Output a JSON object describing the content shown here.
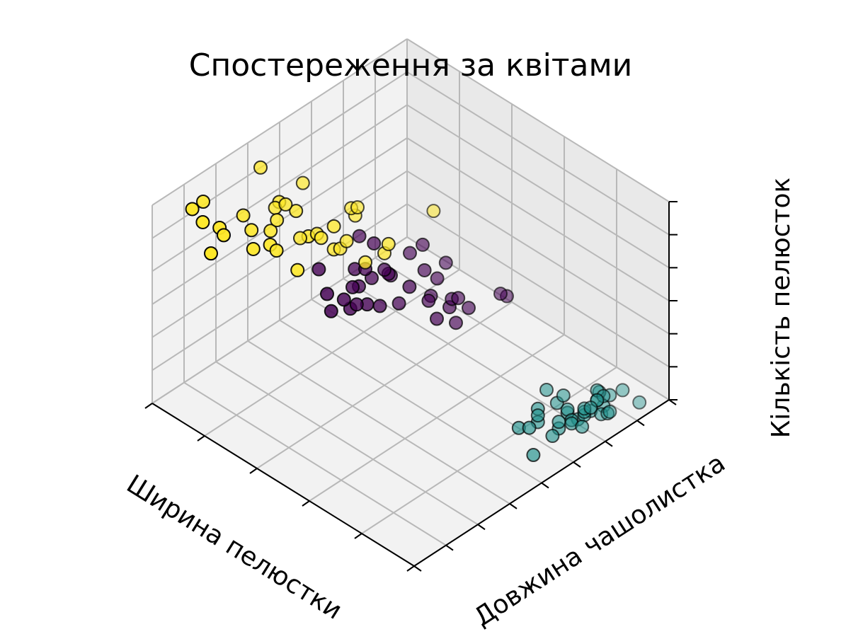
{
  "chart_data": {
    "type": "scatter3d",
    "title": "Спостереження за квітами",
    "xlabel": "Ширина пелюстки",
    "ylabel": "Довжина чашолистка",
    "zlabel": "Кількість пелюсток",
    "xlim": [
      0,
      2.5
    ],
    "ylim": [
      4,
      8
    ],
    "zlim": [
      1,
      7
    ],
    "xticks": [
      0,
      0.5,
      1,
      1.5,
      2,
      2.5
    ],
    "yticks": [
      4,
      4.5,
      5,
      5.5,
      6,
      6.5,
      7,
      7.5,
      8
    ],
    "zticks": [
      1,
      2,
      3,
      4,
      5,
      6,
      7
    ],
    "grid": true,
    "series": [
      {
        "color": "#21918c",
        "x": [
          0.2,
          0.2,
          0.2,
          0.2,
          0.2,
          0.4,
          0.3,
          0.2,
          0.2,
          0.1,
          0.2,
          0.2,
          0.1,
          0.1,
          0.2,
          0.4,
          0.4,
          0.3,
          0.3,
          0.3,
          0.2,
          0.4,
          0.2,
          0.5,
          0.2,
          0.2,
          0.4,
          0.2,
          0.2,
          0.2,
          0.2,
          0.4,
          0.1,
          0.2,
          0.2
        ],
        "y": [
          5.1,
          4.9,
          4.7,
          4.6,
          5.0,
          5.4,
          4.6,
          5.0,
          4.4,
          4.9,
          5.4,
          4.8,
          4.8,
          4.3,
          5.8,
          5.7,
          5.4,
          5.1,
          5.7,
          5.1,
          5.4,
          5.1,
          4.6,
          5.1,
          4.8,
          5.0,
          5.0,
          5.2,
          5.2,
          4.7,
          4.8,
          5.4,
          5.2,
          5.5,
          4.9
        ],
        "z": [
          1.4,
          1.4,
          1.3,
          1.5,
          1.4,
          1.7,
          1.4,
          1.5,
          1.4,
          1.5,
          1.5,
          1.6,
          1.4,
          1.1,
          1.2,
          1.5,
          1.3,
          1.4,
          1.7,
          1.5,
          1.7,
          1.5,
          1.0,
          1.7,
          1.9,
          1.6,
          1.6,
          1.5,
          1.4,
          1.6,
          1.6,
          1.5,
          1.5,
          1.4,
          1.5
        ]
      },
      {
        "color": "#440154",
        "x": [
          1.4,
          1.5,
          1.5,
          1.3,
          1.5,
          1.3,
          1.6,
          1.0,
          1.3,
          1.4,
          1.0,
          1.5,
          1.0,
          1.4,
          1.3,
          1.4,
          1.5,
          1.0,
          1.5,
          1.1,
          1.8,
          1.3,
          1.5,
          1.2,
          1.3,
          1.4,
          1.4,
          1.7,
          1.5,
          1.0,
          1.1,
          1.0,
          1.2,
          1.6,
          1.5
        ],
        "y": [
          7.0,
          6.4,
          6.9,
          5.5,
          6.5,
          5.7,
          6.3,
          4.9,
          6.6,
          5.2,
          5.0,
          5.9,
          6.0,
          6.1,
          5.6,
          6.7,
          5.6,
          5.8,
          6.2,
          5.6,
          5.9,
          6.1,
          6.3,
          6.1,
          6.4,
          6.6,
          6.8,
          6.7,
          6.0,
          5.7,
          5.5,
          5.5,
          5.8,
          6.0,
          5.4
        ],
        "z": [
          4.7,
          4.5,
          4.9,
          4.0,
          4.6,
          4.5,
          4.7,
          3.3,
          4.6,
          3.9,
          3.5,
          4.2,
          4.0,
          4.7,
          3.6,
          4.4,
          4.5,
          4.1,
          4.5,
          3.9,
          4.8,
          4.0,
          4.9,
          4.7,
          4.3,
          4.4,
          4.8,
          5.0,
          4.5,
          3.5,
          3.8,
          3.7,
          3.9,
          5.1,
          4.5
        ]
      },
      {
        "color": "#fde725",
        "x": [
          2.5,
          1.9,
          2.1,
          1.8,
          2.2,
          2.1,
          1.7,
          1.8,
          1.8,
          2.5,
          2.0,
          1.9,
          2.1,
          2.0,
          2.4,
          2.3,
          1.8,
          2.2,
          2.3,
          1.5,
          2.3,
          2.0,
          2.0,
          1.8,
          2.1,
          1.8,
          1.8,
          1.8,
          2.1,
          1.6,
          1.9,
          2.0,
          2.2,
          1.5,
          1.4
        ],
        "y": [
          6.3,
          5.8,
          7.1,
          6.3,
          6.5,
          7.6,
          4.9,
          7.3,
          6.7,
          7.2,
          6.5,
          6.4,
          6.8,
          5.7,
          5.8,
          6.4,
          6.5,
          7.7,
          7.7,
          6.0,
          6.9,
          5.6,
          7.7,
          6.3,
          6.7,
          7.2,
          6.2,
          6.1,
          6.4,
          7.2,
          7.4,
          7.9,
          6.4,
          6.3,
          6.1
        ],
        "z": [
          6.0,
          5.1,
          5.9,
          5.6,
          5.8,
          6.6,
          4.5,
          6.3,
          5.8,
          6.1,
          5.1,
          5.3,
          5.5,
          5.0,
          5.1,
          5.3,
          5.5,
          6.7,
          6.9,
          5.0,
          5.7,
          4.9,
          6.7,
          4.9,
          5.7,
          6.0,
          4.8,
          4.9,
          5.6,
          5.8,
          6.1,
          6.4,
          5.6,
          5.1,
          5.6
        ]
      }
    ]
  }
}
